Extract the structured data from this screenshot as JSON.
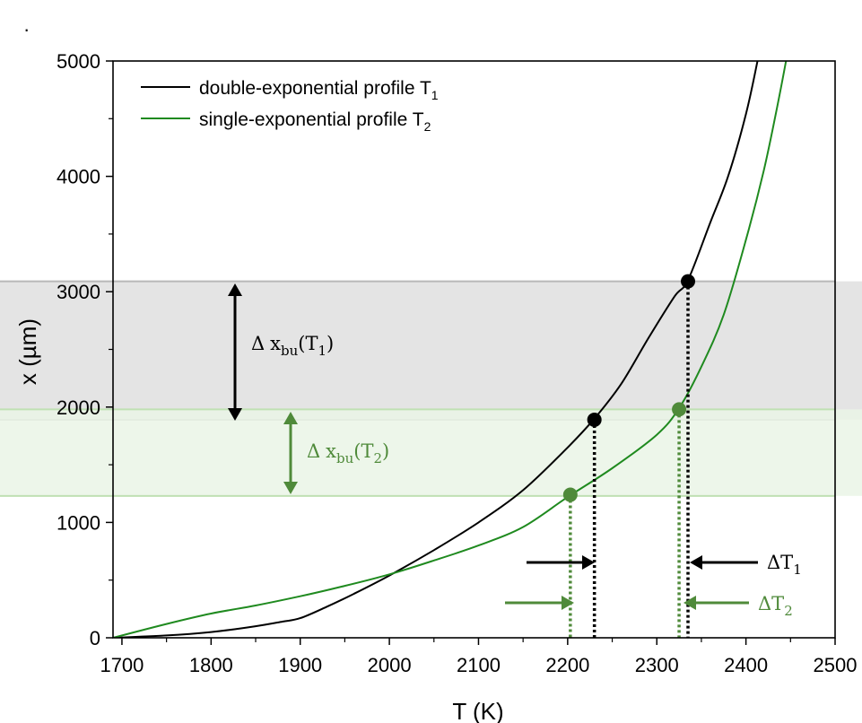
{
  "chart_data": {
    "type": "line",
    "corner_mark": "·",
    "xlabel": "T (K)",
    "ylabel": "x (µm)",
    "xlim": [
      1690,
      2500
    ],
    "ylim": [
      0,
      5000
    ],
    "xticks": [
      1700,
      1800,
      1900,
      2000,
      2100,
      2200,
      2300,
      2400,
      2500
    ],
    "yticks": [
      0,
      1000,
      2000,
      3000,
      4000,
      5000
    ],
    "grid": false,
    "legend_position": "top-left",
    "colors": {
      "t1": "#000000",
      "t2": "#1f8a1f",
      "annotation_green": "#4f8a3a",
      "band_gray": "#e4e4e4",
      "band_green": "#eaf5e6"
    },
    "series": [
      {
        "id": "t1",
        "name": "double-exponential profile T",
        "name_subscript": "1",
        "x": [
          1690,
          1750,
          1800,
          1850,
          1880,
          1900,
          1930,
          1960,
          2000,
          2050,
          2100,
          2150,
          2200,
          2230,
          2260,
          2290,
          2320,
          2335,
          2360,
          2380,
          2400,
          2413
        ],
        "y": [
          0,
          20,
          50,
          100,
          140,
          170,
          270,
          380,
          540,
          760,
          1000,
          1280,
          1650,
          1900,
          2200,
          2590,
          2960,
          3100,
          3600,
          4000,
          4540,
          5000
        ]
      },
      {
        "id": "t2",
        "name": "single-exponential profile T",
        "name_subscript": "2",
        "x": [
          1690,
          1750,
          1800,
          1850,
          1900,
          1950,
          2000,
          2050,
          2100,
          2150,
          2200,
          2250,
          2300,
          2325,
          2350,
          2375,
          2400,
          2420,
          2435,
          2445
        ],
        "y": [
          0,
          120,
          210,
          280,
          360,
          450,
          550,
          670,
          800,
          960,
          1220,
          1470,
          1760,
          1990,
          2350,
          2800,
          3450,
          4050,
          4600,
          5000
        ]
      }
    ],
    "bands": [
      {
        "id": "gray",
        "y": [
          1890,
          3090
        ]
      },
      {
        "id": "green",
        "y": [
          1230,
          1980
        ]
      }
    ],
    "markers": [
      {
        "series": "t1",
        "x": 2230,
        "y": 1890
      },
      {
        "series": "t1",
        "x": 2335,
        "y": 3090
      },
      {
        "series": "t2",
        "x": 2203,
        "y": 1240
      },
      {
        "series": "t2",
        "x": 2325,
        "y": 1980
      }
    ],
    "annotations": {
      "dx1": {
        "delta": "Δ",
        "x": "x",
        "sub": "bu",
        "open": "(T",
        "idx": "1",
        "close": ")"
      },
      "dx2": {
        "delta": "Δ",
        "x": "x",
        "sub": "bu",
        "open": "(T",
        "idx": "2",
        "close": ")"
      },
      "dT1": {
        "main": "ΔT",
        "sub": "1"
      },
      "dT2": {
        "main": "ΔT",
        "sub": "2"
      }
    }
  }
}
